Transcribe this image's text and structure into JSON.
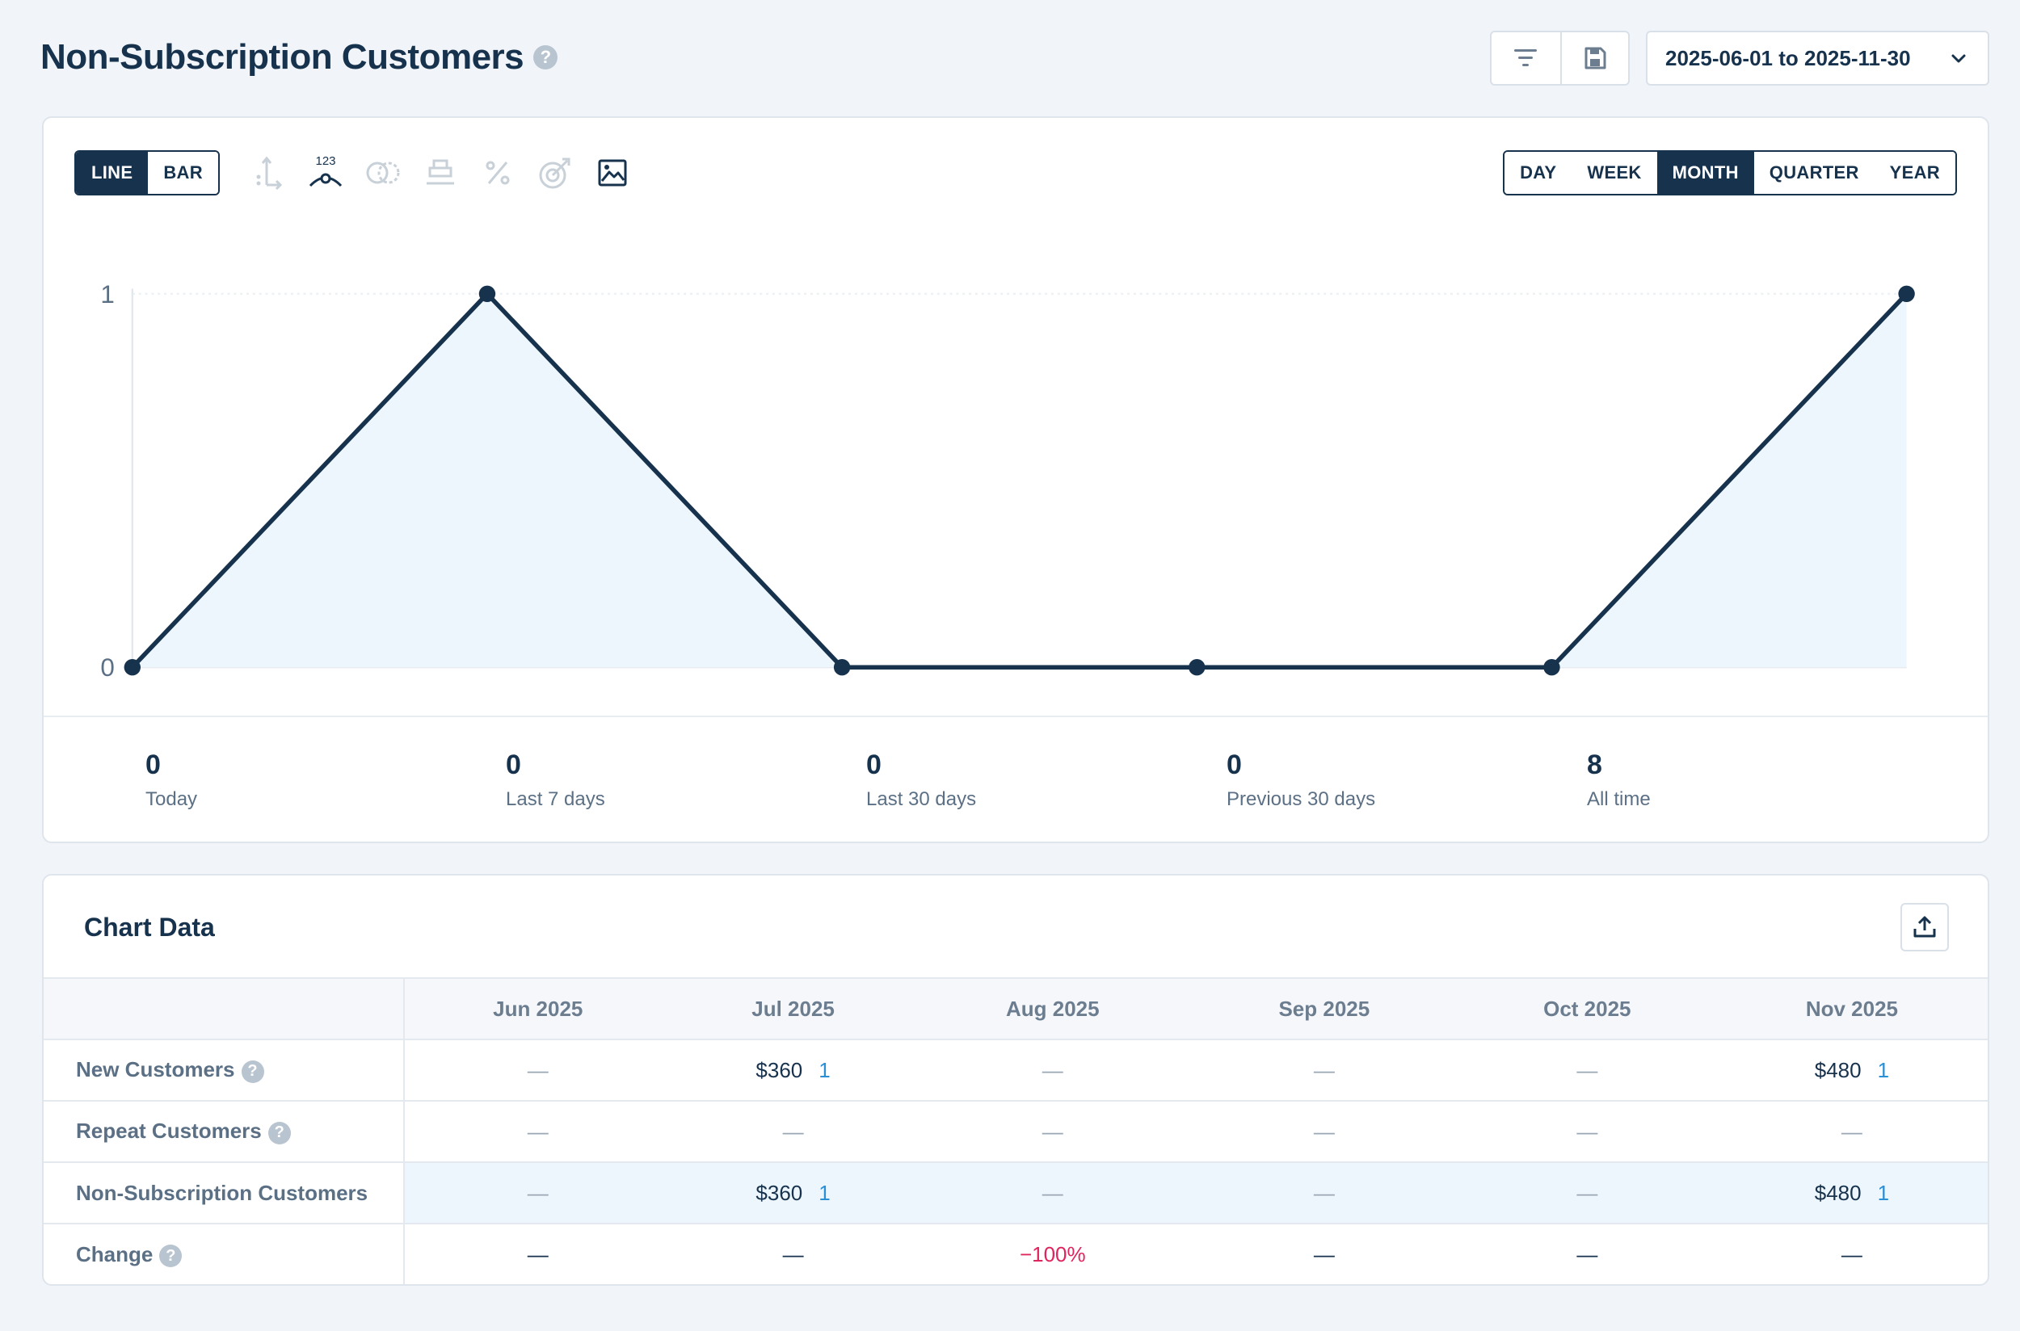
{
  "header": {
    "title": "Non-Subscription Customers",
    "date_range": "2025-06-01 to 2025-11-30"
  },
  "chart_controls": {
    "type_options": [
      "LINE",
      "BAR"
    ],
    "type_selected": "LINE",
    "tool_icons": [
      "axis-icon",
      "data-labels-icon",
      "compare-icon",
      "stack-icon",
      "percent-icon",
      "goal-icon",
      "image-export-icon"
    ],
    "data_labels_text": "123",
    "period_options": [
      "DAY",
      "WEEK",
      "MONTH",
      "QUARTER",
      "YEAR"
    ],
    "period_selected": "MONTH"
  },
  "chart_data": {
    "type": "area",
    "categories": [
      "Jun 2025",
      "Jul 2025",
      "Aug 2025",
      "Sep 2025",
      "Oct 2025",
      "Nov 2025"
    ],
    "values": [
      0,
      1,
      0,
      0,
      0,
      1
    ],
    "y_ticks": [
      "0",
      "1"
    ],
    "ylim": [
      0,
      1
    ],
    "line_color": "#17324d",
    "fill_color": "#eef6fd"
  },
  "stats": [
    {
      "value": "0",
      "label": "Today"
    },
    {
      "value": "0",
      "label": "Last 7 days"
    },
    {
      "value": "0",
      "label": "Last 30 days"
    },
    {
      "value": "0",
      "label": "Previous 30 days"
    },
    {
      "value": "8",
      "label": "All time"
    }
  ],
  "data_table": {
    "title": "Chart Data",
    "columns": [
      "Jun 2025",
      "Jul 2025",
      "Aug 2025",
      "Sep 2025",
      "Oct 2025",
      "Nov 2025"
    ],
    "rows": [
      {
        "label": "New Customers",
        "help": true,
        "highlight": false,
        "cells": [
          {
            "dash": "—"
          },
          {
            "money": "$360",
            "count": "1"
          },
          {
            "dash": "—"
          },
          {
            "dash": "—"
          },
          {
            "dash": "—"
          },
          {
            "money": "$480",
            "count": "1"
          }
        ]
      },
      {
        "label": "Repeat Customers",
        "help": true,
        "highlight": false,
        "cells": [
          {
            "dash": "—"
          },
          {
            "dash": "—"
          },
          {
            "dash": "—"
          },
          {
            "dash": "—"
          },
          {
            "dash": "—"
          },
          {
            "dash": "—"
          }
        ]
      },
      {
        "label": "Non-Subscription Customers",
        "help": false,
        "highlight": true,
        "cells": [
          {
            "dash": "—"
          },
          {
            "money": "$360",
            "count": "1"
          },
          {
            "dash": "—"
          },
          {
            "dash": "—"
          },
          {
            "dash": "—"
          },
          {
            "money": "$480",
            "count": "1"
          }
        ]
      },
      {
        "label": "Change",
        "help": true,
        "highlight": false,
        "cells": [
          {
            "dark": "—"
          },
          {
            "dark": "—"
          },
          {
            "neg": "−100%"
          },
          {
            "dark": "—"
          },
          {
            "dark": "—"
          },
          {
            "dark": "—"
          }
        ]
      }
    ]
  },
  "help_glyph": "?"
}
